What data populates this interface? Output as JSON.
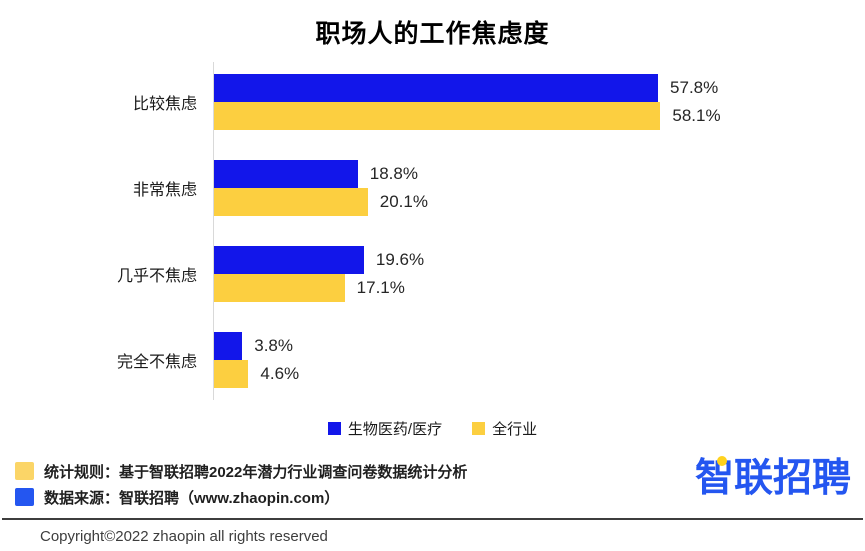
{
  "chart_data": {
    "type": "bar",
    "orientation": "horizontal",
    "title": "职场人的工作焦虑度",
    "categories": [
      "比较焦虑",
      "非常焦虑",
      "几乎不焦虑",
      "完全不焦虑"
    ],
    "series": [
      {
        "key": "biomedical",
        "name": "生物医药/医疗",
        "color": "#1216EA",
        "values": [
          57.8,
          18.8,
          19.6,
          3.8
        ]
      },
      {
        "key": "all-industry",
        "name": "全行业",
        "color": "#FCCF40",
        "values": [
          58.1,
          20.1,
          17.1,
          4.6
        ]
      }
    ],
    "value_suffix": "%",
    "xlim": [
      0,
      60
    ],
    "grid": false,
    "legend_position": "bottom"
  },
  "legend": {
    "items": [
      {
        "label": "生物医药/医疗",
        "color": "#1216EA"
      },
      {
        "label": "全行业",
        "color": "#FCCF40"
      }
    ]
  },
  "footer": {
    "stat_rule": "统计规则：基于智联招聘2022年潜力行业调查问卷数据统计分析",
    "stat_rule_swatch_color": "#FBD567",
    "data_source": "数据来源：智联招聘（www.zhaopin.com）",
    "data_source_swatch_color": "#2456F0",
    "copyright": "Copyright©2022 zhaopin all rights reserved"
  },
  "logo": {
    "text": "智联招聘",
    "color": "#2456F0",
    "accent": "#FFD21E"
  }
}
